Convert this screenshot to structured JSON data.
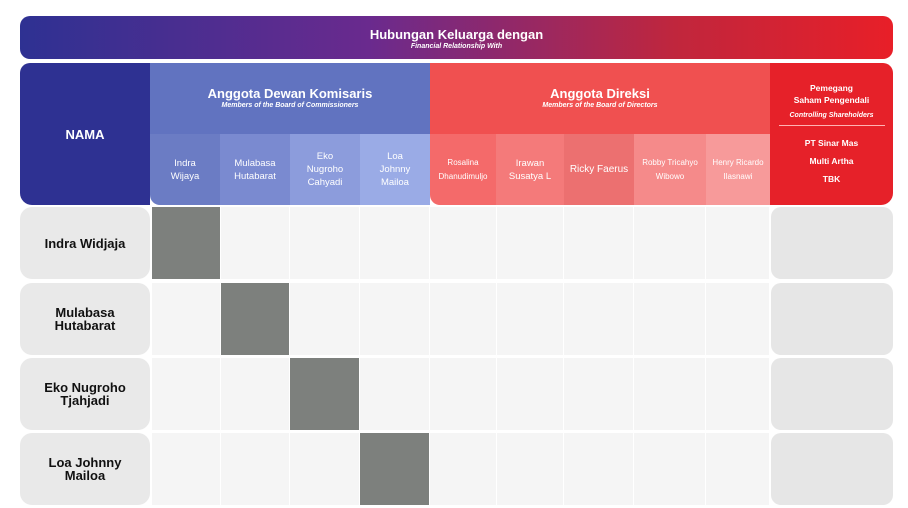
{
  "header": {
    "title": "Hubungan Keluarga dengan",
    "subtitle": "Financial Relationship With"
  },
  "columns": {
    "nama_label": "NAMA",
    "commissioners": {
      "title": "Anggota Dewan Komisaris",
      "subtitle": "Members of the Board of Commissioners",
      "members": [
        "Indra\nWijaya",
        "Mulabasa\nHutabarat",
        "Eko\nNugroho\nCahyadi",
        "Loa\nJohnny\nMailoa"
      ]
    },
    "directors": {
      "title": "Anggota Direksi",
      "subtitle": "Members of the Board of Directors",
      "members": [
        "Rosalina\nDhanudimuljo",
        "Irawan\nSusatya L",
        "Ricky Faerus",
        "Robby Tricahyo\nWibowo",
        "Henry Ricardo\nIlasnawi"
      ]
    },
    "shareholders": {
      "title": "Pemegang\nSaham Pengendali",
      "subtitle": "Controlling Shareholders",
      "name_lines": [
        "PT Sinar Mas",
        "Multi Artha",
        "TBK"
      ]
    }
  },
  "rows": [
    {
      "name": "Indra Widjaja",
      "marked_column": 0
    },
    {
      "name": "Mulabasa\nHutabarat",
      "marked_column": 1
    },
    {
      "name": "Eko Nugroho\nTjahjadi",
      "marked_column": 2
    },
    {
      "name": "Loa Johnny\nMailoa",
      "marked_column": 3
    }
  ],
  "colors": {
    "navy": "#2e3192",
    "commissioner_header": "#6173c0",
    "director_header": "#f05050",
    "shareholder_header": "#e62129",
    "mark": "#7d807d"
  }
}
